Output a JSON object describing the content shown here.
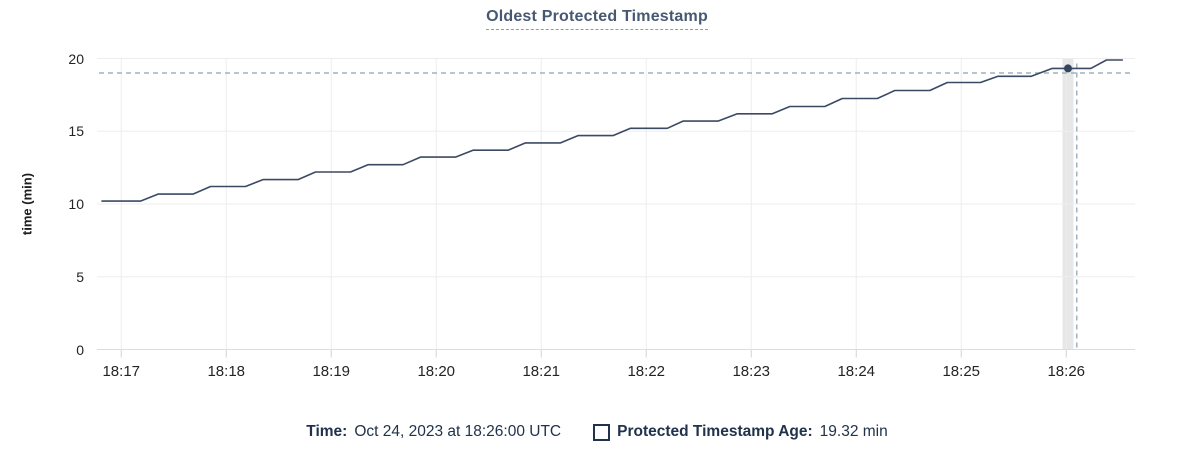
{
  "chart_data": {
    "type": "line",
    "title": "Oldest Protected Timestamp",
    "ylabel": "time (min)",
    "x_unit": "seconds after 18:16:45 UTC",
    "xlim": [
      0,
      594
    ],
    "ylim": [
      0,
      20.6
    ],
    "grid": true,
    "legend_position": "bottom",
    "yticks": [
      0,
      5,
      10,
      15,
      20
    ],
    "xticks": [
      {
        "t": 15,
        "label": "18:17"
      },
      {
        "t": 75,
        "label": "18:18"
      },
      {
        "t": 135,
        "label": "18:19"
      },
      {
        "t": 195,
        "label": "18:20"
      },
      {
        "t": 255,
        "label": "18:21"
      },
      {
        "t": 315,
        "label": "18:22"
      },
      {
        "t": 375,
        "label": "18:23"
      },
      {
        "t": 435,
        "label": "18:24"
      },
      {
        "t": 495,
        "label": "18:25"
      },
      {
        "t": 555,
        "label": "18:26"
      }
    ],
    "series": [
      {
        "name": "Protected Timestamp Age",
        "unit": "min",
        "points": [
          [
            4,
            10.2
          ],
          [
            26,
            10.2
          ],
          [
            36,
            10.68
          ],
          [
            56,
            10.68
          ],
          [
            66,
            11.2
          ],
          [
            86,
            11.2
          ],
          [
            96,
            11.68
          ],
          [
            116,
            11.68
          ],
          [
            126,
            12.2
          ],
          [
            146,
            12.2
          ],
          [
            156,
            12.7
          ],
          [
            176,
            12.7
          ],
          [
            186,
            13.22
          ],
          [
            206,
            13.22
          ],
          [
            216,
            13.7
          ],
          [
            236,
            13.7
          ],
          [
            246,
            14.2
          ],
          [
            266,
            14.2
          ],
          [
            276,
            14.7
          ],
          [
            296,
            14.7
          ],
          [
            306,
            15.2
          ],
          [
            327,
            15.2
          ],
          [
            336,
            15.7
          ],
          [
            356,
            15.7
          ],
          [
            367,
            16.2
          ],
          [
            387,
            16.2
          ],
          [
            397,
            16.7
          ],
          [
            417,
            16.7
          ],
          [
            427,
            17.25
          ],
          [
            447,
            17.25
          ],
          [
            457,
            17.8
          ],
          [
            477,
            17.8
          ],
          [
            487,
            18.35
          ],
          [
            506,
            18.35
          ],
          [
            516,
            18.78
          ],
          [
            535,
            18.78
          ],
          [
            547,
            19.32
          ],
          [
            569,
            19.32
          ],
          [
            578,
            19.9
          ],
          [
            587,
            19.9
          ]
        ]
      }
    ],
    "hover": {
      "time": "Oct 24, 2023 at 18:26:00 UTC",
      "value": 19.32,
      "value_label": "19.32 min",
      "point": [
        556,
        19.32
      ],
      "crosshair_x_t": 561,
      "crosshair_y_value": 19.0
    }
  },
  "legend": {
    "time_label": "Time:",
    "time_value": "Oct 24, 2023 at 18:26:00 UTC",
    "series_label": "Protected Timestamp Age:",
    "series_value": "19.32 min"
  },
  "colors": {
    "line": "#3b4a63",
    "dot": "#36455e",
    "gridline": "#ededed",
    "axis_line": "#dcdcdc",
    "axis_tick": "#d2d2d2",
    "crosshair": "#9fb2bd",
    "hover_band": "#e7e7e7",
    "title": "#475872",
    "title_underline": "#8b99b8",
    "legend_text": "#20324c",
    "tick_label": "#242424"
  }
}
